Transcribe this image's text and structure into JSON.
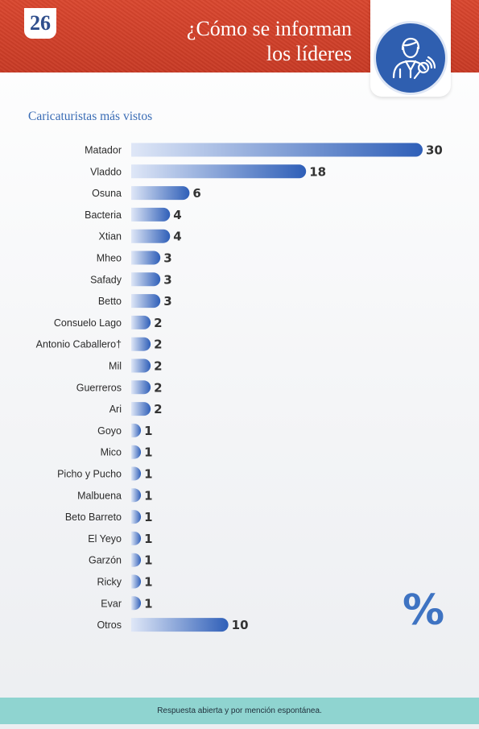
{
  "header": {
    "page_number": "26",
    "title_line1": "¿Cómo se informan",
    "title_line2": "los líderes",
    "icon": "journalist-microphone-icon"
  },
  "subtitle": "Caricaturistas más vistos",
  "unit_symbol": "%",
  "footer": {
    "note": "Respuesta abierta y por mención espontánea."
  },
  "colors": {
    "header": "#c83a25",
    "bar_light": "#dfe7f7",
    "bar_dark": "#2f5fb8",
    "accent": "#3e73c2",
    "footer": "#8fd4d0"
  },
  "chart_data": {
    "type": "bar",
    "orientation": "horizontal",
    "title": "Caricaturistas más vistos",
    "categories": [
      "Matador",
      "Vladdo",
      "Osuna",
      "Bacteria",
      "Xtian",
      "Mheo",
      "Safady",
      "Betto",
      "Consuelo Lago",
      "Antonio Caballero†",
      "Mil",
      "Guerreros",
      "Ari",
      "Goyo",
      "Mico",
      "Picho y Pucho",
      "Malbuena",
      "Beto Barreto",
      "El Yeyo",
      "Garzón",
      "Ricky",
      "Evar",
      "Otros"
    ],
    "values": [
      30,
      18,
      6,
      4,
      4,
      3,
      3,
      3,
      2,
      2,
      2,
      2,
      2,
      1,
      1,
      1,
      1,
      1,
      1,
      1,
      1,
      1,
      10
    ],
    "xlim": [
      0,
      30
    ],
    "grid": false,
    "legend": "none"
  }
}
